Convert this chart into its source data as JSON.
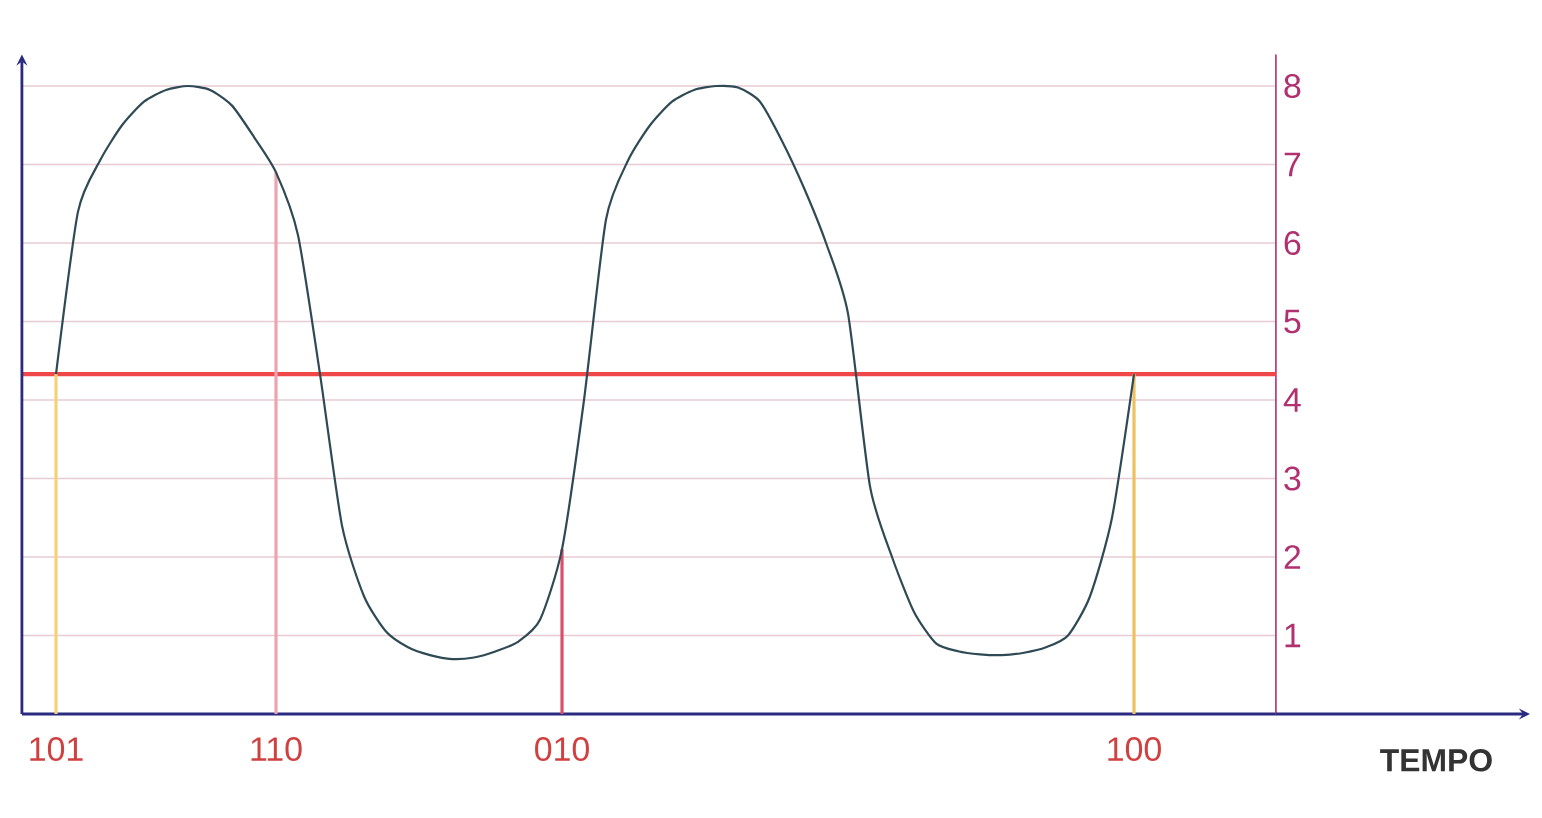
{
  "chart_data": {
    "type": "line",
    "xlabel": "TEMPO",
    "categories": [
      "101",
      null,
      null,
      null,
      null,
      null,
      null,
      null,
      null,
      null,
      "110",
      null,
      null,
      null,
      null,
      null,
      null,
      null,
      null,
      null,
      null,
      null,
      null,
      "010",
      null,
      null,
      null,
      null,
      null,
      null,
      null,
      null,
      null,
      null,
      null,
      null,
      null,
      null,
      null,
      null,
      null,
      null,
      null,
      null,
      null,
      null,
      null,
      null,
      null,
      "100"
    ],
    "series": [
      {
        "color": "#2f4a55",
        "values": [
          4.33,
          6.4,
          7.05,
          7.5,
          7.8,
          7.95,
          8,
          7.95,
          7.75,
          7.35,
          6.9,
          6.1,
          4.33,
          2.4,
          1.5,
          1.05,
          0.85,
          0.75,
          0.7,
          0.72,
          0.8,
          0.92,
          1.2,
          2.1,
          4,
          6.3,
          7.05,
          7.5,
          7.8,
          7.95,
          8,
          7.98,
          7.8,
          7.3,
          6.7,
          6,
          5.1,
          2.9,
          2,
          1.3,
          0.9,
          0.8,
          0.76,
          0.75,
          0.78,
          0.85,
          1,
          1.5,
          2.5,
          4.33
        ]
      },
      {
        "type": "bar",
        "values": [
          4.33,
          null,
          null,
          null,
          null,
          null,
          null,
          null,
          null,
          null,
          6.9,
          null,
          null,
          null,
          null,
          null,
          null,
          null,
          null,
          null,
          null,
          null,
          null,
          2.1,
          null,
          null,
          null,
          null,
          null,
          null,
          null,
          null,
          null,
          null,
          null,
          null,
          null,
          null,
          null,
          null,
          null,
          null,
          null,
          null,
          null,
          null,
          null,
          null,
          null,
          4.33
        ],
        "colors": [
          "#f2d27a",
          null,
          null,
          null,
          null,
          null,
          null,
          null,
          null,
          null,
          "#eba4b0",
          null,
          null,
          null,
          null,
          null,
          null,
          null,
          null,
          null,
          null,
          null,
          null,
          "#d8506a",
          null,
          null,
          null,
          null,
          null,
          null,
          null,
          null,
          null,
          null,
          null,
          null,
          null,
          null,
          null,
          null,
          null,
          null,
          null,
          null,
          null,
          null,
          null,
          null,
          null,
          "#eec060"
        ]
      }
    ],
    "ylim": [
      0,
      8.4
    ],
    "yticks": [
      1,
      2,
      3,
      4,
      5,
      6,
      7,
      8
    ],
    "grid": "y",
    "ref_lines": [
      {
        "axis": "y",
        "value": 4.33,
        "color": "#f04848"
      }
    ]
  }
}
